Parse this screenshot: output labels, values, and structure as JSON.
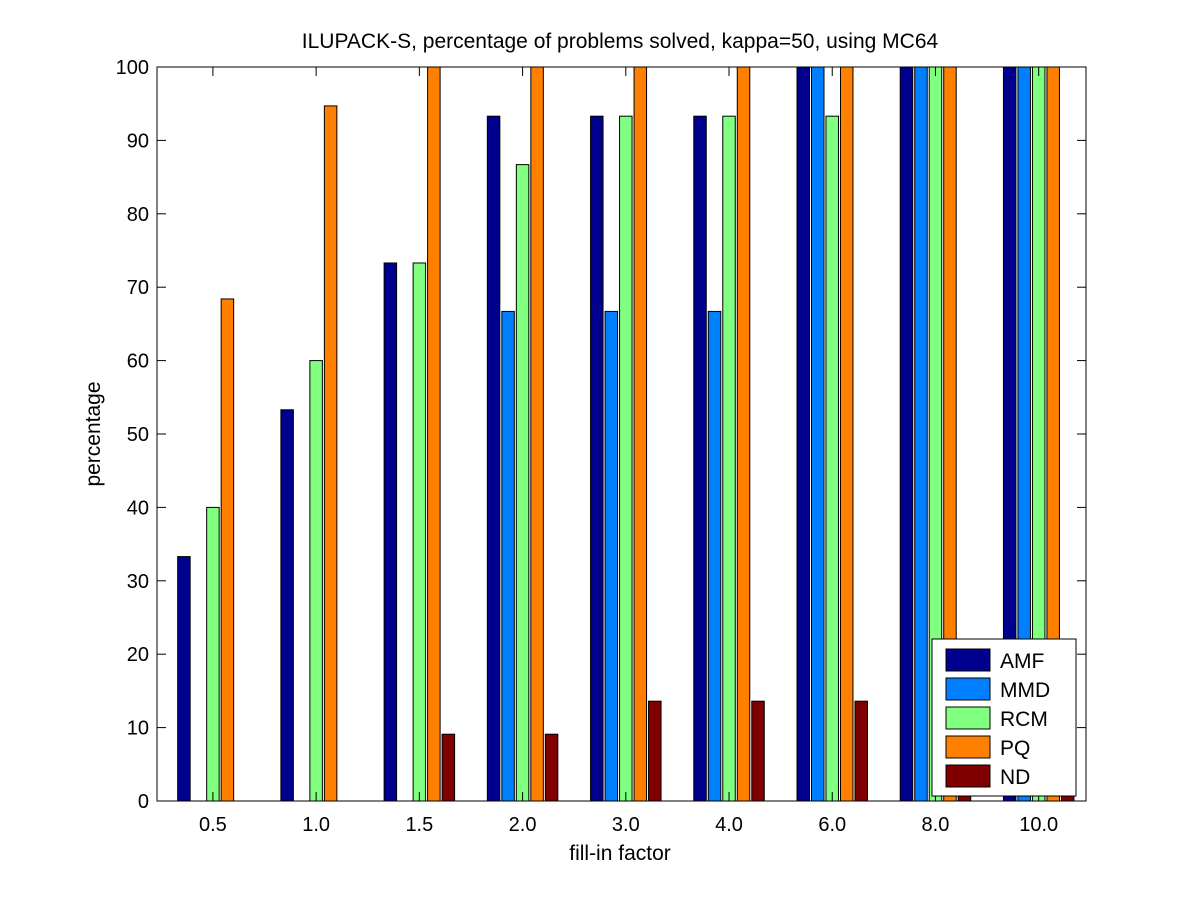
{
  "chart_data": {
    "type": "bar",
    "title": "ILUPACK-S, percentage of problems solved, kappa=50, using MC64",
    "xlabel": "fill-in factor",
    "ylabel": "percentage",
    "ylim": [
      0,
      100
    ],
    "yticks": [
      0,
      10,
      20,
      30,
      40,
      50,
      60,
      70,
      80,
      90,
      100
    ],
    "grid": false,
    "legend_position": "bottom-right",
    "categories": [
      "0.5",
      "1.0",
      "1.5",
      "2.0",
      "3.0",
      "4.0",
      "6.0",
      "8.0",
      "10.0"
    ],
    "series": [
      {
        "name": "AMF",
        "color": "#00008f",
        "values": [
          33.3,
          53.3,
          73.3,
          93.3,
          93.3,
          93.3,
          100,
          100,
          100
        ]
      },
      {
        "name": "MMD",
        "color": "#0080ff",
        "values": [
          0,
          0,
          0,
          66.7,
          66.7,
          66.7,
          100,
          100,
          100
        ]
      },
      {
        "name": "RCM",
        "color": "#80ff80",
        "values": [
          40,
          60,
          73.3,
          86.7,
          93.3,
          93.3,
          93.3,
          100,
          100
        ]
      },
      {
        "name": "PQ",
        "color": "#ff8000",
        "values": [
          68.4,
          94.7,
          100,
          100,
          100,
          100,
          100,
          100,
          100
        ]
      },
      {
        "name": "ND",
        "color": "#800000",
        "values": [
          0,
          0,
          9.1,
          9.1,
          13.6,
          13.6,
          13.6,
          13.6,
          13.6
        ]
      }
    ]
  }
}
